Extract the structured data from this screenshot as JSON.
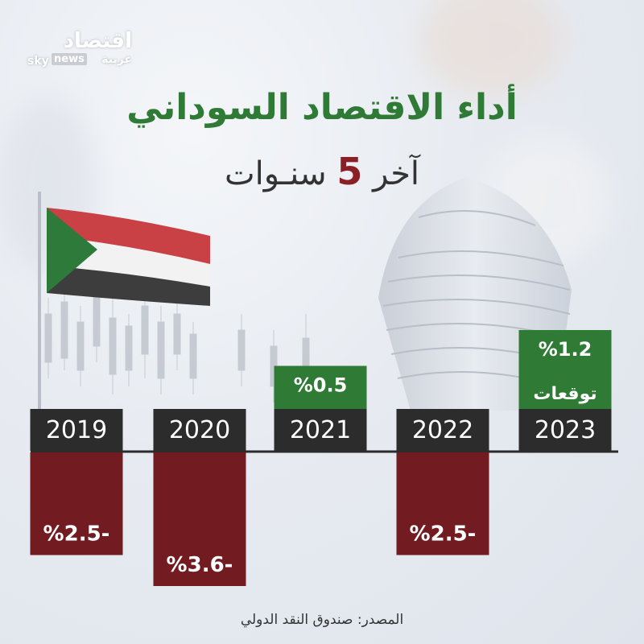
{
  "header": {
    "logo_arabic": "اقتصاد",
    "logo_sky": "sky",
    "logo_news": "news",
    "logo_arabia": "عربية",
    "title": "أداء الاقتصاد السوداني",
    "subtitle_before": "آخر ",
    "subtitle_number": "5",
    "subtitle_after": " سنـوات"
  },
  "colors": {
    "positive": "#2f7a35",
    "negative": "#721c22",
    "year_box": "#2c2c2c",
    "title": "#2f7a35",
    "highlight": "#8a2025"
  },
  "chart_data": {
    "type": "bar",
    "categories": [
      "2019",
      "2020",
      "2021",
      "2022",
      "2023"
    ],
    "values": [
      -2.5,
      -3.6,
      0.5,
      -2.5,
      1.2
    ],
    "labels": [
      "%2.5-",
      "%3.6-",
      "%0.5",
      "%2.5-",
      "%1.2"
    ],
    "notes": [
      "",
      "",
      "",
      "",
      "توقعات"
    ],
    "unit": "%"
  },
  "footer": {
    "source": "المصدر: صندوق النقد الدولي"
  }
}
